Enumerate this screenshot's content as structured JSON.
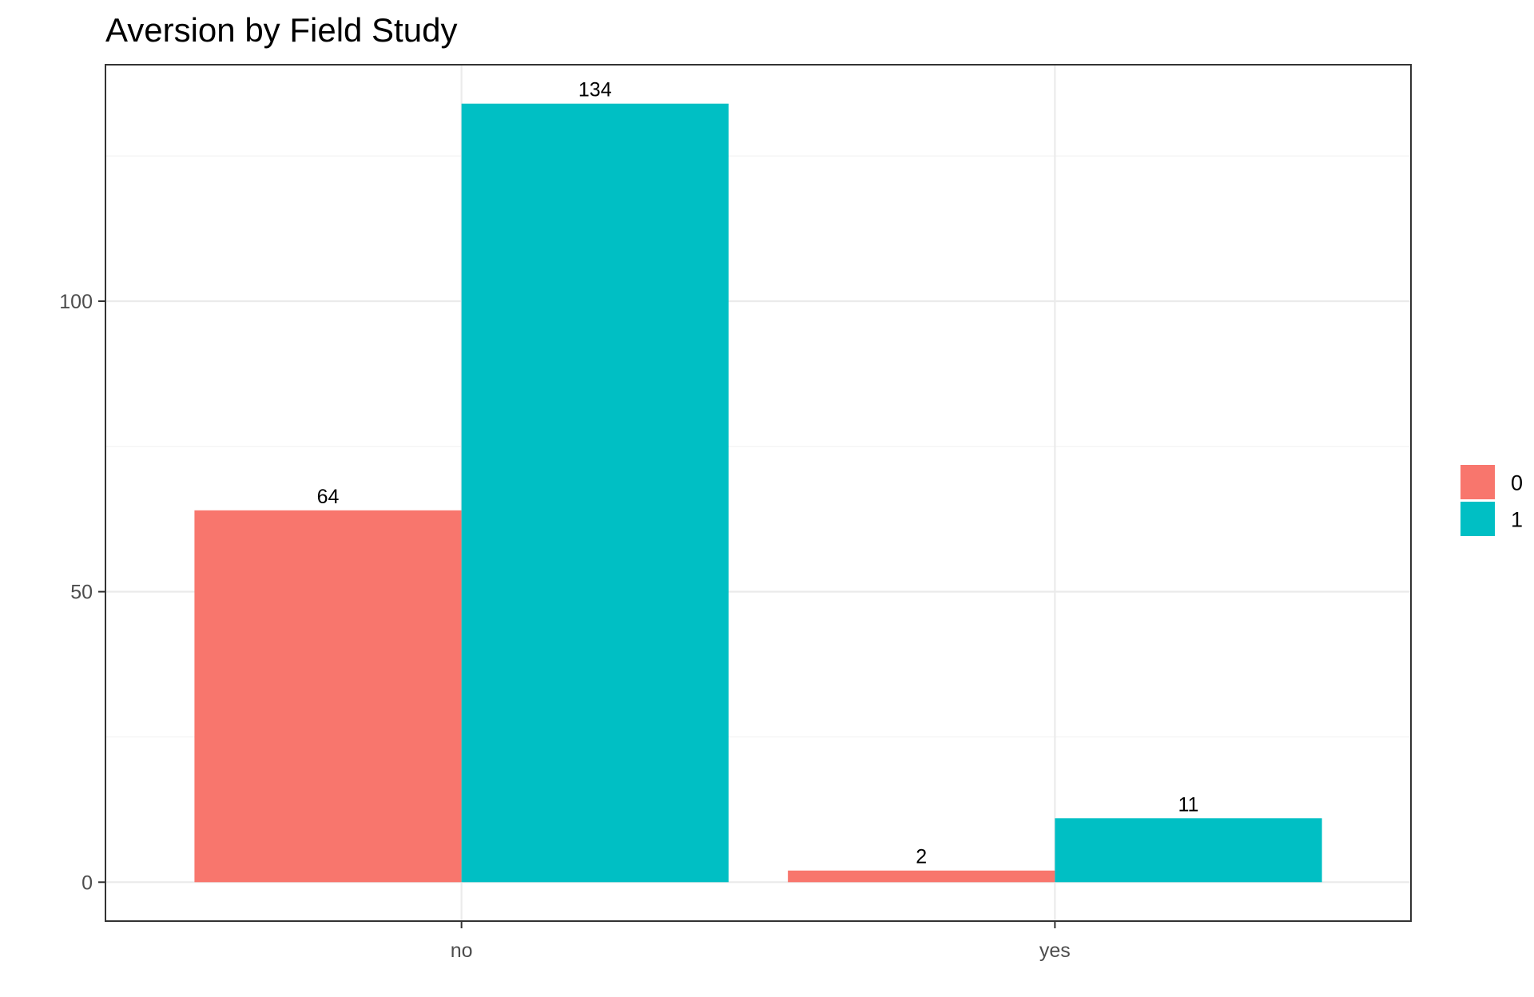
{
  "chart_data": {
    "type": "bar",
    "title": "Aversion by Field Study",
    "xlabel": "",
    "ylabel": "",
    "categories": [
      "no",
      "yes"
    ],
    "series": [
      {
        "name": "0",
        "color": "#F8766D",
        "values": [
          64,
          2
        ]
      },
      {
        "name": "1",
        "color": "#00BFC4",
        "values": [
          134,
          11
        ]
      }
    ],
    "ylim": [
      -6.7,
      140.7
    ],
    "y_ticks": [
      0,
      50,
      100
    ],
    "y_minor_ticks": [
      25,
      75,
      125
    ],
    "grid": true,
    "legend": {
      "placement": "right",
      "title": ""
    },
    "data_labels": true
  }
}
